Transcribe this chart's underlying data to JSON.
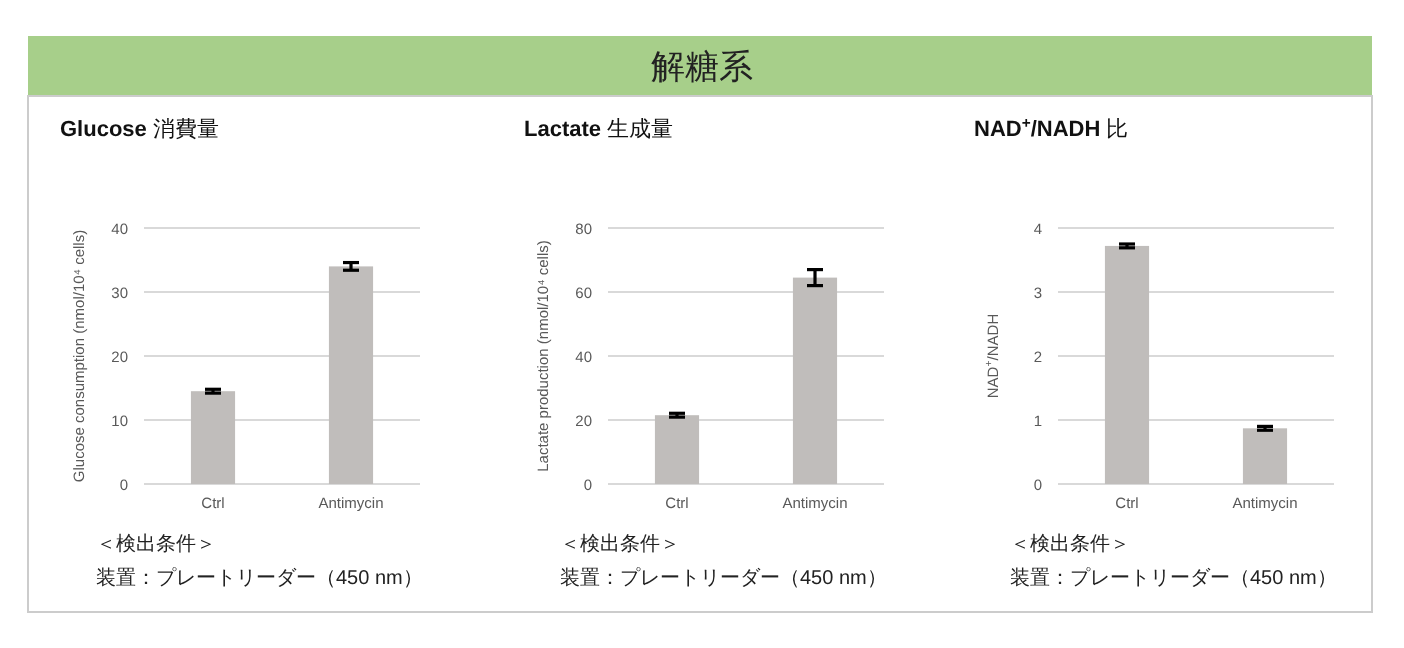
{
  "chart_data": [
    {
      "type": "other",
      "title": "解糖系"
    },
    {
      "type": "bar",
      "title": "**Glucose** 消費量",
      "ylabel": "Glucose consumption (nmol/10⁴ cells)",
      "categories": [
        "Ctrl",
        "Antimycin"
      ],
      "values": [
        14.5,
        34
      ],
      "errors": [
        0.3,
        0.6
      ],
      "color": "#c0bdbb",
      "ylim": [
        0,
        40
      ],
      "yticks": [
        0,
        10,
        20,
        30,
        40
      ],
      "grid": "y",
      "annotations": [
        "＜検出条件＞",
        "装置：プレートリーダー（450 nm）"
      ]
    },
    {
      "type": "bar",
      "title": "**Lactate** 生成量",
      "ylabel": "Lactate production (nmol/10⁴ cells)",
      "categories": [
        "Ctrl",
        "Antimycin"
      ],
      "values": [
        21.5,
        64.5
      ],
      "errors": [
        0.6,
        2.5
      ],
      "color": "#c0bdbb",
      "ylim": [
        0,
        80
      ],
      "yticks": [
        0,
        20,
        40,
        60,
        80
      ],
      "grid": "y",
      "annotations": [
        "＜検出条件＞",
        "装置：プレートリーダー（450 nm）"
      ]
    },
    {
      "type": "bar",
      "title": "**NAD$^{+}$/NADH** 比",
      "ylabel": "NAD$^{+}$/NADH",
      "categories": [
        "Ctrl",
        "Antimycin"
      ],
      "values": [
        3.72,
        0.87
      ],
      "errors": [
        0.03,
        0.03
      ],
      "color": "#c0bdbb",
      "ylim": [
        0,
        4
      ],
      "yticks": [
        0,
        1,
        2,
        3,
        4
      ],
      "grid": "y",
      "annotations": [
        "＜検出条件＞",
        "装置：プレートリーダー（450 nm）"
      ]
    }
  ]
}
